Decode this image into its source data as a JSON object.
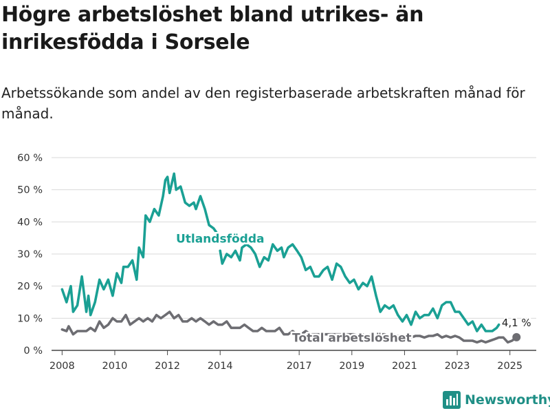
{
  "title": "Högre arbetslöshet bland utrikes- än inrikesfödda i Sorsele",
  "subtitle": "Arbetssökande som andel av den registerbaserade arbetskraften månad för månad.",
  "brand": {
    "name": "Newsworthy",
    "color": "#1f8f86"
  },
  "colors": {
    "foreign": "#1aa094",
    "total": "#6d6d72",
    "grid": "#d9d9d9",
    "axis": "#444444"
  },
  "chart_data": {
    "type": "line",
    "title": "Högre arbetslöshet bland utrikes- än inrikesfödda i Sorsele",
    "xlabel": "",
    "ylabel": "",
    "ylim": [
      0,
      60
    ],
    "xlim": [
      2007.6,
      2026.0
    ],
    "grid": true,
    "yticks": [
      {
        "value": 0,
        "label": "0 %"
      },
      {
        "value": 10,
        "label": "10 %"
      },
      {
        "value": 20,
        "label": "20 %"
      },
      {
        "value": 30,
        "label": "30 %"
      },
      {
        "value": 40,
        "label": "40 %"
      },
      {
        "value": 50,
        "label": "50 %"
      },
      {
        "value": 60,
        "label": "60 %"
      }
    ],
    "xticks": [
      {
        "value": 2008,
        "label": "2008"
      },
      {
        "value": 2010,
        "label": "2010"
      },
      {
        "value": 2012,
        "label": "2012"
      },
      {
        "value": 2014,
        "label": "2014"
      },
      {
        "value": 2017,
        "label": "2017"
      },
      {
        "value": 2019,
        "label": "2019"
      },
      {
        "value": 2021,
        "label": "2021"
      },
      {
        "value": 2023,
        "label": "2023"
      },
      {
        "value": 2025,
        "label": "2025"
      }
    ],
    "series": [
      {
        "name": "Utlandsfödda",
        "color": "#1aa094",
        "points": [
          [
            2008.0,
            19
          ],
          [
            2008.17,
            15
          ],
          [
            2008.33,
            20
          ],
          [
            2008.42,
            12
          ],
          [
            2008.58,
            14
          ],
          [
            2008.75,
            23
          ],
          [
            2008.92,
            12
          ],
          [
            2009.0,
            17
          ],
          [
            2009.08,
            11
          ],
          [
            2009.25,
            15
          ],
          [
            2009.42,
            22
          ],
          [
            2009.58,
            19
          ],
          [
            2009.75,
            22
          ],
          [
            2009.92,
            17
          ],
          [
            2010.08,
            24
          ],
          [
            2010.25,
            21
          ],
          [
            2010.33,
            26
          ],
          [
            2010.5,
            26
          ],
          [
            2010.67,
            28
          ],
          [
            2010.83,
            22
          ],
          [
            2010.92,
            32
          ],
          [
            2011.08,
            29
          ],
          [
            2011.17,
            42
          ],
          [
            2011.33,
            40
          ],
          [
            2011.5,
            44
          ],
          [
            2011.67,
            42
          ],
          [
            2011.83,
            48
          ],
          [
            2011.92,
            53
          ],
          [
            2012.0,
            54
          ],
          [
            2012.08,
            49
          ],
          [
            2012.25,
            55
          ],
          [
            2012.33,
            50
          ],
          [
            2012.5,
            51
          ],
          [
            2012.67,
            46
          ],
          [
            2012.83,
            45
          ],
          [
            2013.0,
            46
          ],
          [
            2013.08,
            44
          ],
          [
            2013.25,
            48
          ],
          [
            2013.42,
            44
          ],
          [
            2013.58,
            39
          ],
          [
            2013.75,
            38
          ],
          [
            2013.92,
            36
          ],
          null,
          [
            2014.0,
            31
          ],
          [
            2014.08,
            27
          ],
          [
            2014.25,
            30
          ],
          [
            2014.42,
            29
          ],
          [
            2014.58,
            31
          ],
          [
            2014.75,
            28
          ],
          [
            2014.83,
            32
          ],
          [
            2015.0,
            33
          ],
          [
            2015.17,
            32
          ],
          [
            2015.33,
            30
          ],
          [
            2015.5,
            26
          ],
          [
            2015.67,
            29
          ],
          [
            2015.83,
            28
          ],
          [
            2016.0,
            33
          ],
          [
            2016.17,
            31
          ],
          [
            2016.33,
            32
          ],
          [
            2016.42,
            29
          ],
          [
            2016.58,
            32
          ],
          [
            2016.75,
            33
          ],
          [
            2016.92,
            31
          ],
          [
            2017.08,
            29
          ],
          [
            2017.25,
            25
          ],
          [
            2017.42,
            26
          ],
          [
            2017.58,
            23
          ],
          [
            2017.75,
            23
          ],
          [
            2017.92,
            25
          ],
          [
            2018.08,
            26
          ],
          [
            2018.25,
            22
          ],
          [
            2018.42,
            27
          ],
          [
            2018.58,
            26
          ],
          [
            2018.75,
            23
          ],
          [
            2018.92,
            21
          ],
          [
            2019.08,
            22
          ],
          [
            2019.25,
            19
          ],
          [
            2019.42,
            21
          ],
          [
            2019.58,
            20
          ],
          [
            2019.75,
            23
          ],
          [
            2019.92,
            17
          ],
          [
            2020.08,
            12
          ],
          [
            2020.25,
            14
          ],
          [
            2020.42,
            13
          ],
          [
            2020.58,
            14
          ],
          [
            2020.75,
            11
          ],
          [
            2020.92,
            9
          ],
          [
            2021.08,
            11
          ],
          [
            2021.25,
            8
          ],
          [
            2021.42,
            12
          ],
          [
            2021.58,
            10
          ],
          [
            2021.75,
            11
          ],
          [
            2021.92,
            11
          ],
          [
            2022.08,
            13
          ],
          [
            2022.25,
            10
          ],
          [
            2022.42,
            14
          ],
          [
            2022.58,
            15
          ],
          [
            2022.75,
            15
          ],
          [
            2022.92,
            12
          ],
          [
            2023.08,
            12
          ],
          [
            2023.25,
            10
          ],
          [
            2023.42,
            8
          ],
          [
            2023.58,
            9
          ],
          [
            2023.75,
            6
          ],
          [
            2023.92,
            8
          ],
          [
            2024.08,
            6
          ],
          [
            2024.25,
            6
          ],
          [
            2024.33,
            6
          ],
          [
            2024.5,
            7
          ],
          [
            2024.58,
            8
          ]
        ]
      },
      {
        "name": "Total arbetslöshet",
        "color": "#6d6d72",
        "points": [
          [
            2008.0,
            6.5
          ],
          [
            2008.17,
            6
          ],
          [
            2008.25,
            7.5
          ],
          [
            2008.42,
            5
          ],
          [
            2008.58,
            6
          ],
          [
            2008.75,
            6
          ],
          [
            2008.92,
            6
          ],
          [
            2009.08,
            7
          ],
          [
            2009.25,
            6
          ],
          [
            2009.42,
            9
          ],
          [
            2009.58,
            7
          ],
          [
            2009.75,
            8
          ],
          [
            2009.92,
            10
          ],
          [
            2010.08,
            9
          ],
          [
            2010.25,
            9
          ],
          [
            2010.42,
            11
          ],
          [
            2010.58,
            8
          ],
          [
            2010.75,
            9
          ],
          [
            2010.92,
            10
          ],
          [
            2011.08,
            9
          ],
          [
            2011.25,
            10
          ],
          [
            2011.42,
            9
          ],
          [
            2011.58,
            11
          ],
          [
            2011.75,
            10
          ],
          [
            2011.92,
            11
          ],
          [
            2012.08,
            12
          ],
          [
            2012.25,
            10
          ],
          [
            2012.42,
            11
          ],
          [
            2012.58,
            9
          ],
          [
            2012.75,
            9
          ],
          [
            2012.92,
            10
          ],
          [
            2013.08,
            9
          ],
          [
            2013.25,
            10
          ],
          [
            2013.42,
            9
          ],
          [
            2013.58,
            8
          ],
          [
            2013.75,
            9
          ],
          [
            2013.92,
            8
          ],
          [
            2014.08,
            8
          ],
          [
            2014.25,
            9
          ],
          [
            2014.42,
            7
          ],
          [
            2014.58,
            7
          ],
          [
            2014.75,
            7
          ],
          [
            2014.92,
            8
          ],
          [
            2015.08,
            7
          ],
          [
            2015.25,
            6
          ],
          [
            2015.42,
            6
          ],
          [
            2015.58,
            7
          ],
          [
            2015.75,
            6
          ],
          [
            2015.92,
            6
          ],
          [
            2016.08,
            6
          ],
          [
            2016.25,
            7
          ],
          [
            2016.42,
            5
          ],
          [
            2016.58,
            5
          ],
          [
            2016.75,
            6
          ],
          [
            2016.92,
            5
          ],
          [
            2017.08,
            5
          ],
          [
            2017.25,
            6
          ],
          [
            2017.42,
            5
          ],
          [
            2017.58,
            5
          ],
          [
            2017.75,
            5
          ],
          [
            2017.92,
            5
          ],
          [
            2018.08,
            5
          ],
          [
            2018.25,
            5
          ],
          [
            2018.42,
            5
          ],
          [
            2018.58,
            5
          ],
          [
            2018.75,
            5
          ],
          [
            2018.92,
            5
          ],
          [
            2019.08,
            5
          ],
          [
            2019.25,
            4.5
          ],
          [
            2019.42,
            5
          ],
          [
            2019.58,
            4.5
          ],
          [
            2019.75,
            5
          ],
          [
            2019.92,
            4.5
          ],
          [
            2020.08,
            5
          ],
          [
            2020.25,
            5
          ],
          [
            2020.42,
            4.5
          ],
          [
            2020.58,
            5
          ],
          [
            2020.75,
            4.5
          ],
          [
            2020.92,
            4.5
          ],
          [
            2021.08,
            4.5
          ],
          [
            2021.25,
            4
          ],
          [
            2021.42,
            4.5
          ],
          [
            2021.58,
            4.5
          ],
          [
            2021.75,
            4
          ],
          [
            2021.92,
            4.5
          ],
          [
            2022.08,
            4.5
          ],
          [
            2022.25,
            5
          ],
          [
            2022.42,
            4
          ],
          [
            2022.58,
            4.5
          ],
          [
            2022.75,
            4
          ],
          [
            2022.92,
            4.5
          ],
          [
            2023.08,
            4
          ],
          [
            2023.25,
            3
          ],
          [
            2023.42,
            3
          ],
          [
            2023.58,
            3
          ],
          [
            2023.75,
            2.5
          ],
          [
            2023.92,
            3
          ],
          [
            2024.08,
            2.5
          ],
          [
            2024.25,
            3
          ],
          [
            2024.42,
            3.5
          ],
          [
            2024.58,
            4
          ],
          [
            2024.75,
            4
          ],
          [
            2024.92,
            2.5
          ],
          [
            2025.08,
            3
          ],
          [
            2025.25,
            4.1
          ]
        ],
        "last_value_label": "4,1 %"
      }
    ]
  }
}
